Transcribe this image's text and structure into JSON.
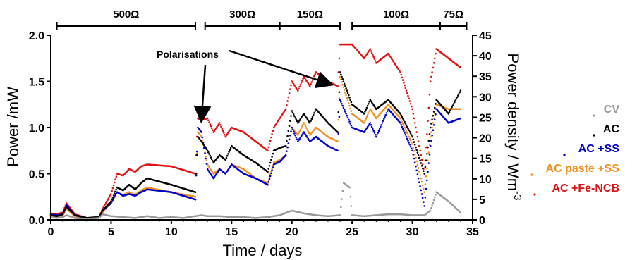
{
  "chart_data": {
    "type": "line",
    "xlabel": "Time / days",
    "ylabel": "Power /mW",
    "y2label": "Power density / Wm",
    "y2label_sup": "-3",
    "xlim": [
      0,
      35
    ],
    "ylim": [
      0,
      2.0
    ],
    "y2lim": [
      0,
      45
    ],
    "xticks": [
      "0",
      "5",
      "10",
      "15",
      "20",
      "25",
      "30",
      "35"
    ],
    "yticks": [
      "0.0",
      "0.5",
      "1.0",
      "1.5",
      "2.0"
    ],
    "y2ticks": [
      "0",
      "5",
      "10",
      "15",
      "20",
      "25",
      "30",
      "35",
      "40",
      "45"
    ],
    "resistor_periods": [
      {
        "label": "500Ω",
        "start": 0.5,
        "end": 12.0
      },
      {
        "label": "300Ω",
        "start": 12.8,
        "end": 19.0
      },
      {
        "label": "150Ω",
        "start": 19.0,
        "end": 24.0
      },
      {
        "label": "100Ω",
        "start": 25.0,
        "end": 32.3
      },
      {
        "label": "75Ω",
        "start": 32.3,
        "end": 34.5
      }
    ],
    "annotation": {
      "text": "Polarisations",
      "arrow_targets": [
        [
          12.5,
          1.02
        ],
        [
          23.8,
          1.5
        ]
      ]
    },
    "legend": {
      "position": "right"
    },
    "series": [
      {
        "name": "CV",
        "color": "#999999",
        "points": [
          [
            0,
            0.03
          ],
          [
            0.5,
            0.02
          ],
          [
            1,
            0.03
          ],
          [
            1.3,
            0.05
          ],
          [
            2,
            0.02
          ],
          [
            3,
            0.01
          ],
          [
            4,
            0.02
          ],
          [
            4.3,
            0.06
          ],
          [
            5,
            0.04
          ],
          [
            6,
            0.03
          ],
          [
            7,
            0.02
          ],
          [
            8,
            0.04
          ],
          [
            9,
            0.02
          ],
          [
            10,
            0.03
          ],
          [
            11,
            0.02
          ],
          [
            12,
            0.04
          ],
          [
            12.5,
            0.05
          ],
          [
            13,
            0.04
          ],
          [
            14,
            0.04
          ],
          [
            15,
            0.03
          ],
          [
            16,
            0.03
          ],
          [
            17,
            0.02
          ],
          [
            18,
            0.03
          ],
          [
            19,
            0.05
          ],
          [
            20,
            0.1
          ],
          [
            21,
            0.07
          ],
          [
            22,
            0.05
          ],
          [
            23,
            0.04
          ],
          [
            24,
            0.05
          ],
          [
            24.3,
            0.4
          ],
          [
            24.8,
            0.35
          ],
          [
            25,
            0.05
          ],
          [
            26,
            0.04
          ],
          [
            27,
            0.05
          ],
          [
            28,
            0.06
          ],
          [
            29,
            0.06
          ],
          [
            30,
            0.05
          ],
          [
            31,
            0.05
          ],
          [
            31.5,
            0.1
          ],
          [
            32,
            0.3
          ],
          [
            33,
            0.2
          ],
          [
            34,
            0.08
          ]
        ]
      },
      {
        "name": "AC",
        "color": "#000000",
        "points": [
          [
            0,
            0.05
          ],
          [
            0.5,
            0.04
          ],
          [
            1,
            0.06
          ],
          [
            1.3,
            0.14
          ],
          [
            2,
            0.05
          ],
          [
            3,
            0.02
          ],
          [
            4,
            0.03
          ],
          [
            4.3,
            0.1
          ],
          [
            5,
            0.2
          ],
          [
            5.5,
            0.35
          ],
          [
            6,
            0.32
          ],
          [
            6.5,
            0.38
          ],
          [
            7,
            0.33
          ],
          [
            7.5,
            0.4
          ],
          [
            8,
            0.45
          ],
          [
            10,
            0.38
          ],
          [
            12,
            0.3
          ],
          [
            12.2,
            0.9
          ],
          [
            12.5,
            0.85
          ],
          [
            13,
            0.75
          ],
          [
            13.5,
            0.62
          ],
          [
            14,
            0.7
          ],
          [
            14.5,
            0.65
          ],
          [
            15,
            0.8
          ],
          [
            16,
            0.7
          ],
          [
            17,
            0.62
          ],
          [
            18,
            0.52
          ],
          [
            18.5,
            0.75
          ],
          [
            19,
            0.78
          ],
          [
            19.5,
            0.8
          ],
          [
            20,
            1.18
          ],
          [
            20.5,
            1.05
          ],
          [
            21,
            1.15
          ],
          [
            21.5,
            1.05
          ],
          [
            22,
            1.2
          ],
          [
            23,
            1.05
          ],
          [
            23.8,
            0.95
          ],
          [
            24,
            1.6
          ],
          [
            25,
            1.25
          ],
          [
            26,
            1.15
          ],
          [
            26.5,
            1.3
          ],
          [
            27,
            1.2
          ],
          [
            28,
            1.3
          ],
          [
            29,
            1.15
          ],
          [
            30,
            0.9
          ],
          [
            31,
            0.5
          ],
          [
            31.5,
            1.0
          ],
          [
            32,
            1.3
          ],
          [
            33,
            1.15
          ],
          [
            34,
            1.4
          ]
        ]
      },
      {
        "name": "AC +SS",
        "color": "#0000cc",
        "points": [
          [
            0,
            0.06
          ],
          [
            0.5,
            0.05
          ],
          [
            1,
            0.06
          ],
          [
            1.3,
            0.16
          ],
          [
            2,
            0.05
          ],
          [
            3,
            0.02
          ],
          [
            4,
            0.03
          ],
          [
            4.3,
            0.1
          ],
          [
            5,
            0.18
          ],
          [
            5.5,
            0.3
          ],
          [
            6,
            0.26
          ],
          [
            6.5,
            0.28
          ],
          [
            7,
            0.26
          ],
          [
            7.5,
            0.3
          ],
          [
            8,
            0.33
          ],
          [
            10,
            0.3
          ],
          [
            12,
            0.22
          ],
          [
            12.2,
            1.0
          ],
          [
            12.5,
            0.95
          ],
          [
            13,
            0.55
          ],
          [
            13.5,
            0.45
          ],
          [
            14,
            0.55
          ],
          [
            14.5,
            0.5
          ],
          [
            15,
            0.6
          ],
          [
            16,
            0.5
          ],
          [
            17,
            0.45
          ],
          [
            18,
            0.38
          ],
          [
            18.5,
            0.6
          ],
          [
            19,
            0.63
          ],
          [
            19.5,
            0.7
          ],
          [
            20,
            1.0
          ],
          [
            20.5,
            0.85
          ],
          [
            21,
            0.95
          ],
          [
            21.5,
            0.85
          ],
          [
            22,
            0.9
          ],
          [
            23,
            0.8
          ],
          [
            23.8,
            0.75
          ],
          [
            24,
            1.3
          ],
          [
            25,
            1.0
          ],
          [
            26,
            0.95
          ],
          [
            26.5,
            1.05
          ],
          [
            27,
            0.9
          ],
          [
            28,
            1.2
          ],
          [
            29,
            1.05
          ],
          [
            30,
            0.75
          ],
          [
            31,
            0.15
          ],
          [
            31.5,
            0.8
          ],
          [
            32,
            1.2
          ],
          [
            33,
            1.05
          ],
          [
            34,
            1.1
          ]
        ]
      },
      {
        "name": "AC paste +SS",
        "color": "#f0901e",
        "points": [
          [
            0,
            0.04
          ],
          [
            0.5,
            0.03
          ],
          [
            1,
            0.05
          ],
          [
            1.3,
            0.12
          ],
          [
            2,
            0.04
          ],
          [
            3,
            0.02
          ],
          [
            4,
            0.03
          ],
          [
            4.3,
            0.08
          ],
          [
            5,
            0.2
          ],
          [
            5.5,
            0.3
          ],
          [
            6,
            0.27
          ],
          [
            6.5,
            0.3
          ],
          [
            7,
            0.27
          ],
          [
            7.5,
            0.32
          ],
          [
            8,
            0.35
          ],
          [
            10,
            0.3
          ],
          [
            12,
            0.25
          ],
          [
            12.2,
            0.95
          ],
          [
            12.5,
            0.9
          ],
          [
            13,
            0.6
          ],
          [
            13.5,
            0.5
          ],
          [
            14,
            0.55
          ],
          [
            14.5,
            0.5
          ],
          [
            15,
            0.6
          ],
          [
            16,
            0.55
          ],
          [
            17,
            0.45
          ],
          [
            18,
            0.4
          ],
          [
            18.5,
            0.62
          ],
          [
            19,
            0.65
          ],
          [
            19.5,
            0.7
          ],
          [
            20,
            1.0
          ],
          [
            20.5,
            0.92
          ],
          [
            21,
            1.05
          ],
          [
            21.5,
            0.92
          ],
          [
            22,
            1.0
          ],
          [
            23,
            0.9
          ],
          [
            23.8,
            0.85
          ],
          [
            24,
            1.55
          ],
          [
            25,
            1.15
          ],
          [
            26,
            1.05
          ],
          [
            26.5,
            1.2
          ],
          [
            27,
            1.1
          ],
          [
            28,
            1.25
          ],
          [
            29,
            1.1
          ],
          [
            30,
            0.82
          ],
          [
            31,
            0.3
          ],
          [
            31.5,
            0.9
          ],
          [
            32,
            1.25
          ],
          [
            33,
            1.2
          ],
          [
            34,
            1.2
          ]
        ]
      },
      {
        "name": "AC +Fe-NCB",
        "color": "#e01010",
        "points": [
          [
            0,
            0.07
          ],
          [
            0.5,
            0.06
          ],
          [
            1,
            0.08
          ],
          [
            1.3,
            0.18
          ],
          [
            2,
            0.06
          ],
          [
            3,
            0.02
          ],
          [
            4,
            0.03
          ],
          [
            4.3,
            0.12
          ],
          [
            5,
            0.28
          ],
          [
            5.5,
            0.5
          ],
          [
            6,
            0.48
          ],
          [
            6.5,
            0.55
          ],
          [
            7,
            0.52
          ],
          [
            7.5,
            0.58
          ],
          [
            8,
            0.6
          ],
          [
            10,
            0.58
          ],
          [
            12,
            0.5
          ],
          [
            12.2,
            1.1
          ],
          [
            12.5,
            1.08
          ],
          [
            13,
            1.1
          ],
          [
            13.5,
            0.95
          ],
          [
            14,
            1.05
          ],
          [
            14.5,
            0.9
          ],
          [
            15,
            1.0
          ],
          [
            16,
            0.95
          ],
          [
            17,
            0.85
          ],
          [
            18,
            0.75
          ],
          [
            18.5,
            1.0
          ],
          [
            19,
            1.1
          ],
          [
            19.5,
            1.2
          ],
          [
            20,
            1.5
          ],
          [
            20.5,
            1.4
          ],
          [
            21,
            1.55
          ],
          [
            21.5,
            1.45
          ],
          [
            22,
            1.6
          ],
          [
            23,
            1.5
          ],
          [
            23.8,
            1.45
          ],
          [
            24,
            1.9
          ],
          [
            25,
            1.9
          ],
          [
            26,
            1.75
          ],
          [
            26.5,
            1.85
          ],
          [
            27,
            1.7
          ],
          [
            28,
            1.8
          ],
          [
            29,
            1.6
          ],
          [
            30,
            1.2
          ],
          [
            31,
            0.5
          ],
          [
            31.5,
            1.5
          ],
          [
            32,
            1.85
          ],
          [
            33,
            1.75
          ],
          [
            34,
            1.65
          ]
        ]
      }
    ]
  }
}
